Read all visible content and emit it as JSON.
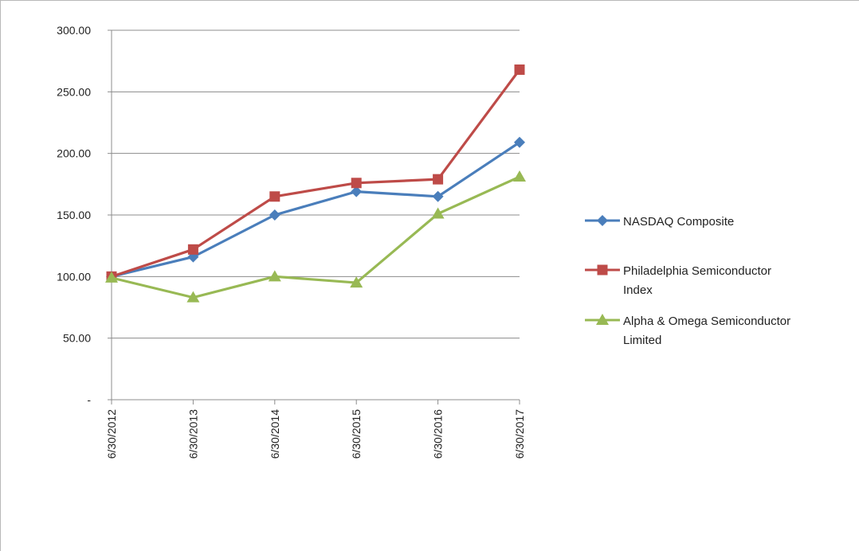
{
  "chart_data": {
    "type": "line",
    "categories": [
      "6/30/2012",
      "6/30/2013",
      "6/30/2014",
      "6/30/2015",
      "6/30/2016",
      "6/30/2017"
    ],
    "y_tick_labels": [
      "-",
      "50.00",
      "100.00",
      "150.00",
      "200.00",
      "250.00",
      "300.00"
    ],
    "ylim": [
      0,
      300
    ],
    "grid": "horizontal",
    "legend_position": "right",
    "series": [
      {
        "name": "NASDAQ Composite",
        "name_lines": [
          "NASDAQ Composite"
        ],
        "color": "#4a7ebb",
        "marker": "diamond",
        "values": [
          100,
          116,
          150,
          169,
          165,
          209
        ]
      },
      {
        "name": "Philadelphia Semiconductor Index",
        "name_lines": [
          "Philadelphia Semiconductor",
          "Index"
        ],
        "color": "#be4b48",
        "marker": "square",
        "values": [
          100,
          122,
          165,
          176,
          179,
          268
        ]
      },
      {
        "name": "Alpha & Omega Semiconductor Limited",
        "name_lines": [
          "Alpha & Omega Semiconductor",
          "Limited"
        ],
        "color": "#98b954",
        "marker": "triangle",
        "values": [
          99,
          83,
          100,
          95,
          151,
          181
        ]
      }
    ]
  }
}
